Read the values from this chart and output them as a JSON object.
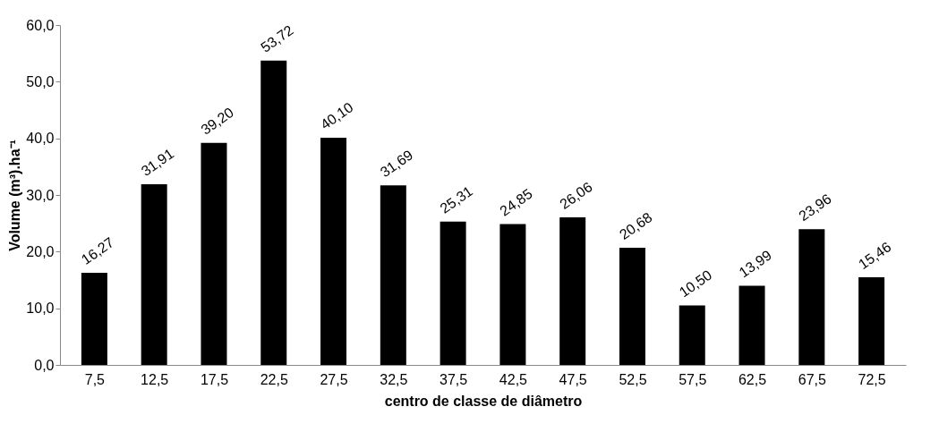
{
  "chart_data": {
    "type": "bar",
    "xlabel": "centro de classe de diâmetro",
    "ylabel": "Volume (m³).ha⁻¹",
    "categories": [
      "7,5",
      "12,5",
      "17,5",
      "22,5",
      "27,5",
      "32,5",
      "37,5",
      "42,5",
      "47,5",
      "52,5",
      "57,5",
      "62,5",
      "67,5",
      "72,5"
    ],
    "values": [
      16.27,
      31.91,
      39.2,
      53.72,
      40.1,
      31.69,
      25.31,
      24.85,
      26.06,
      20.68,
      10.5,
      13.99,
      23.96,
      15.46
    ],
    "value_labels": [
      "16,27",
      "31,91",
      "39,20",
      "53,72",
      "40,10",
      "31,69",
      "25,31",
      "24,85",
      "26,06",
      "20,68",
      "10,50",
      "13,99",
      "23,96",
      "15,46"
    ],
    "color": "#000000",
    "ylim": [
      0,
      60
    ],
    "yticks": [
      {
        "value": 0,
        "label": "0,0"
      },
      {
        "value": 10,
        "label": "10,0"
      },
      {
        "value": 20,
        "label": "20,0"
      },
      {
        "value": 30,
        "label": "30,0"
      },
      {
        "value": 40,
        "label": "40,0"
      },
      {
        "value": 50,
        "label": "50,0"
      },
      {
        "value": 60,
        "label": "60,0"
      }
    ],
    "grid": false
  }
}
